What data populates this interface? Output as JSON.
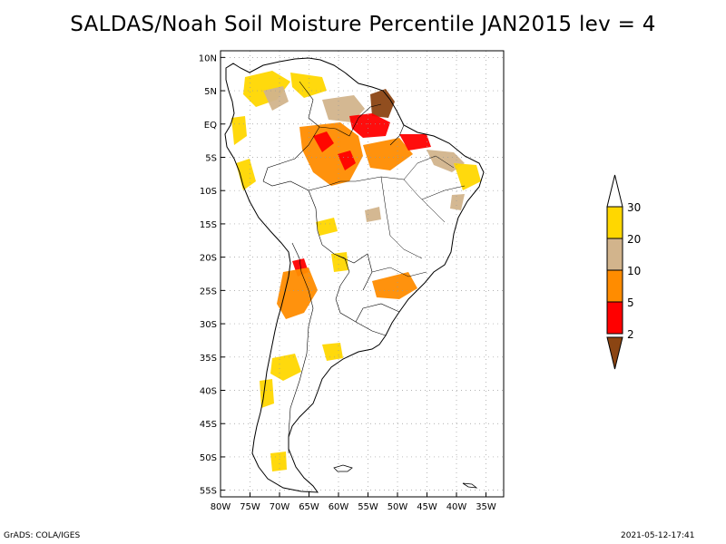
{
  "title": "SALDAS/Noah Soil Moisture Percentile JAN2015 lev = 4",
  "footer": {
    "left": "GrADS: COLA/IGES",
    "right": "2021-05-12-17:41"
  },
  "map": {
    "lon_range": [
      -80,
      -32
    ],
    "lat_range": [
      -56,
      11
    ],
    "lat_ticks": [
      "10N",
      "5N",
      "EQ",
      "5S",
      "10S",
      "15S",
      "20S",
      "25S",
      "30S",
      "35S",
      "40S",
      "45S",
      "50S",
      "55S"
    ],
    "lon_ticks": [
      "80W",
      "75W",
      "70W",
      "65W",
      "60W",
      "55W",
      "50W",
      "45W",
      "40W",
      "35W"
    ],
    "grid": true,
    "background": "#ffffff",
    "coastline_color": "#000000"
  },
  "legend": {
    "placement": "right",
    "levels": [
      "2",
      "5",
      "10",
      "20",
      "30"
    ],
    "colors": {
      "below_2": "#8b4513",
      "2_5": "#ff0000",
      "5_10": "#ff8c00",
      "10_20": "#d2b48c",
      "20_30": "#ffd700",
      "above_30": "#ffffff"
    }
  }
}
